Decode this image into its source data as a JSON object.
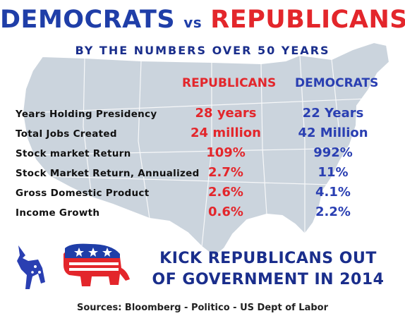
{
  "header": {
    "title_left": "DEMOCRATS",
    "title_vs": "vs",
    "title_right": "REPUBLICANS",
    "subtitle": "BY THE NUMBERS OVER 50 YEARS"
  },
  "columns": {
    "republicans": "REPUBLICANS",
    "democrats": "DEMOCRATS"
  },
  "rows": [
    {
      "label": "Years Holding Presidency",
      "rep": "28 years",
      "dem": "22 Years"
    },
    {
      "label": "Total Jobs Created",
      "rep": "24 million",
      "dem": "42 Million"
    },
    {
      "label": "Stock market Return",
      "rep": "109%",
      "dem": "992%"
    },
    {
      "label": "Stock Market Return, Annualized",
      "rep": "2.7%",
      "dem": "11%"
    },
    {
      "label": "Gross Domestic Product",
      "rep": "2.6%",
      "dem": "4.1%"
    },
    {
      "label": "Income Growth",
      "rep": "0.6%",
      "dem": "2.2%"
    }
  ],
  "slogan": {
    "line1": "KICK REPUBLICANS OUT",
    "line2": "OF GOVERNMENT IN 2014"
  },
  "sources": "Sources:  Bloomberg - Politico - US Dept of Labor",
  "colors": {
    "republican_red": "#e3262b",
    "democrat_blue": "#2a3fb2",
    "navy": "#1a2e8c",
    "map_fill": "#c9d2dc"
  },
  "icons": [
    "us-map-icon",
    "donkey-icon",
    "elephant-icon"
  ]
}
